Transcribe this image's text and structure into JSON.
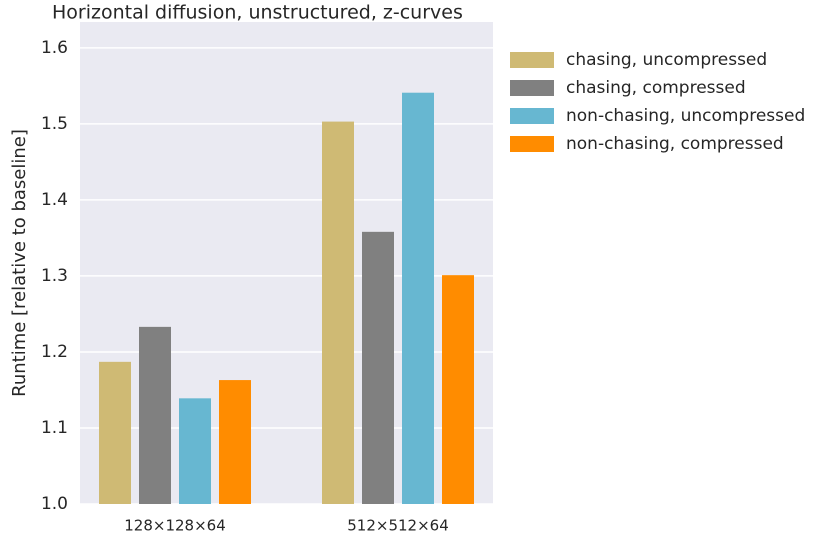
{
  "chart_data": {
    "type": "bar",
    "title": "Horizontal diffusion,  unstructured,  z-curves",
    "ylabel": "Runtime [relative to baseline]",
    "categories": [
      "128×128×64",
      "512×512×64"
    ],
    "series": [
      {
        "name": "chasing,  uncompressed",
        "color": "#cfba74",
        "values": [
          1.187,
          1.503
        ]
      },
      {
        "name": "chasing,  compressed",
        "color": "#808080",
        "values": [
          1.233,
          1.358
        ]
      },
      {
        "name": "non-chasing,  uncompressed",
        "color": "#67b7d1",
        "values": [
          1.139,
          1.541
        ]
      },
      {
        "name": "non-chasing,  compressed",
        "color": "#ff8c00",
        "values": [
          1.163,
          1.301
        ]
      }
    ],
    "ylim": [
      1.0,
      1.634
    ],
    "yticks": [
      {
        "value": 1.0,
        "label": "1.0"
      },
      1.1,
      1.2,
      1.3,
      1.4,
      1.5,
      1.6
    ],
    "grid": true,
    "legend": "outside right"
  }
}
